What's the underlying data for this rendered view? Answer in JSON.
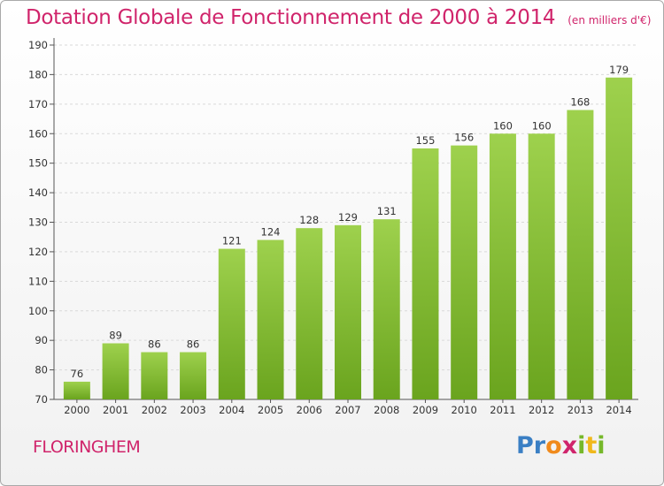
{
  "header": {
    "title": "Dotation Globale de Fonctionnement de 2000 à 2014",
    "subtitle": "(en milliers d'€)"
  },
  "footer": {
    "commune": "FLORINGHEM",
    "logo": [
      {
        "char": "P",
        "color": "#3a7fc4"
      },
      {
        "char": "r",
        "color": "#3a7fc4"
      },
      {
        "char": "o",
        "color": "#f08a1c"
      },
      {
        "char": "x",
        "color": "#d0246b"
      },
      {
        "char": "i",
        "color": "#76b82a"
      },
      {
        "char": "t",
        "color": "#f0b81c"
      },
      {
        "char": "i",
        "color": "#76b82a"
      }
    ]
  },
  "colors": {
    "bar_top": "#9ed14d",
    "bar_bottom": "#6aa41e",
    "accent": "#d0246b",
    "grid": "#d9d9d9"
  },
  "chart_data": {
    "type": "bar",
    "categories": [
      "2000",
      "2001",
      "2002",
      "2003",
      "2004",
      "2005",
      "2006",
      "2007",
      "2008",
      "2009",
      "2010",
      "2011",
      "2012",
      "2013",
      "2014"
    ],
    "values": [
      76,
      89,
      86,
      86,
      121,
      124,
      128,
      129,
      131,
      155,
      156,
      160,
      160,
      168,
      179
    ],
    "yticks": [
      70,
      80,
      90,
      100,
      110,
      120,
      130,
      140,
      150,
      160,
      170,
      180,
      190
    ],
    "ylim": [
      70,
      190
    ],
    "title": "Dotation Globale de Fonctionnement de 2000 à 2014",
    "subtitle": "(en milliers d'€)",
    "xlabel": "",
    "ylabel": "",
    "grid": true,
    "data_labels": true
  }
}
